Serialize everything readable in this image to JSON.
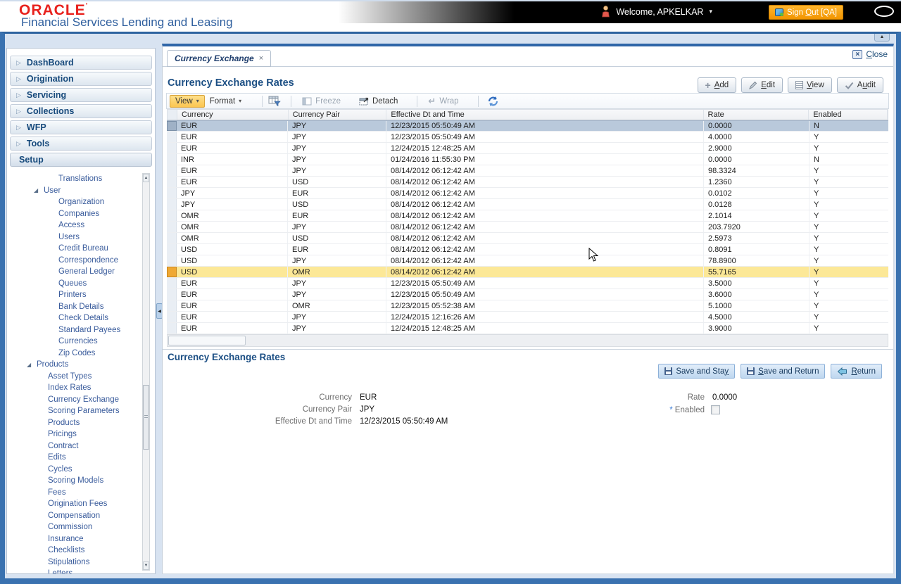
{
  "icons": {
    "expand": "▷",
    "tree_open": "◢",
    "dropdown": "▾",
    "up": "▲",
    "down": "▼",
    "left": "◀",
    "close_x": "×",
    "wrap": "↵",
    "plus": "+"
  },
  "header": {
    "logo": "ORACLE",
    "logo_mark": "’",
    "tagline": "Financial Services Lending and Leasing",
    "welcome": "Welcome, APKELKAR",
    "sign_out": {
      "pre": "Sign ",
      "u": "O",
      "post": "ut [QA]"
    }
  },
  "nav": {
    "items": [
      {
        "label": "DashBoard",
        "arrow": true
      },
      {
        "label": "Origination",
        "arrow": true
      },
      {
        "label": "Servicing",
        "arrow": true
      },
      {
        "label": "Collections",
        "arrow": true
      },
      {
        "label": "WFP",
        "arrow": true
      },
      {
        "label": "Tools",
        "arrow": true
      },
      {
        "label": "Setup",
        "arrow": false
      }
    ]
  },
  "tree": {
    "items": [
      {
        "label": "Translations",
        "pad": 73
      },
      {
        "label": "User",
        "pad": 52,
        "parent": true
      },
      {
        "label": "Organization",
        "pad": 73
      },
      {
        "label": "Companies",
        "pad": 73
      },
      {
        "label": "Access",
        "pad": 73
      },
      {
        "label": "Users",
        "pad": 73
      },
      {
        "label": "Credit Bureau",
        "pad": 73
      },
      {
        "label": "Correspondence",
        "pad": 73
      },
      {
        "label": "General Ledger",
        "pad": 73
      },
      {
        "label": "Queues",
        "pad": 73
      },
      {
        "label": "Printers",
        "pad": 73
      },
      {
        "label": "Bank Details",
        "pad": 73
      },
      {
        "label": "Check Details",
        "pad": 73
      },
      {
        "label": "Standard Payees",
        "pad": 73
      },
      {
        "label": "Currencies",
        "pad": 73
      },
      {
        "label": "Zip Codes",
        "pad": 73
      },
      {
        "label": "Products",
        "pad": 42,
        "parent": true
      },
      {
        "label": "Asset Types",
        "pad": 58
      },
      {
        "label": "Index Rates",
        "pad": 58
      },
      {
        "label": "Currency Exchange",
        "pad": 58
      },
      {
        "label": "Scoring Parameters",
        "pad": 58
      },
      {
        "label": "Products",
        "pad": 58
      },
      {
        "label": "Pricings",
        "pad": 58
      },
      {
        "label": "Contract",
        "pad": 58
      },
      {
        "label": "Edits",
        "pad": 58
      },
      {
        "label": "Cycles",
        "pad": 58
      },
      {
        "label": "Scoring Models",
        "pad": 58
      },
      {
        "label": "Fees",
        "pad": 58
      },
      {
        "label": "Origination Fees",
        "pad": 58
      },
      {
        "label": "Compensation",
        "pad": 58
      },
      {
        "label": "Commission",
        "pad": 58
      },
      {
        "label": "Insurance",
        "pad": 58
      },
      {
        "label": "Checklists",
        "pad": 58
      },
      {
        "label": "Stipulations",
        "pad": 58
      },
      {
        "label": "Letters",
        "pad": 58
      }
    ]
  },
  "window": {
    "tab": "Currency Exchange",
    "close": {
      "pre": "",
      "u": "C",
      "post": "lose"
    }
  },
  "grid": {
    "title": "Currency Exchange Rates",
    "actions": [
      {
        "pre": "",
        "u": "A",
        "post": "dd"
      },
      {
        "pre": "",
        "u": "E",
        "post": "dit"
      },
      {
        "pre": "",
        "u": "V",
        "post": "iew"
      },
      {
        "pre": "A",
        "u": "u",
        "post": "dit"
      }
    ],
    "toolbar": {
      "view": "View",
      "format": "Format",
      "freeze": "Freeze",
      "detach": "Detach",
      "wrap": "Wrap"
    },
    "columns": [
      "Currency",
      "Currency Pair",
      "Effective Dt and Time",
      "Rate",
      "Enabled"
    ],
    "rows": [
      {
        "currency": "EUR",
        "pair": "JPY",
        "dt": "12/23/2015 05:50:49 AM",
        "rate": "0.0000",
        "enabled": "N",
        "state": "selected"
      },
      {
        "currency": "EUR",
        "pair": "JPY",
        "dt": "12/23/2015 05:50:49 AM",
        "rate": "4.0000",
        "enabled": "Y",
        "state": ""
      },
      {
        "currency": "EUR",
        "pair": "JPY",
        "dt": "12/24/2015 12:48:25 AM",
        "rate": "2.9000",
        "enabled": "Y",
        "state": ""
      },
      {
        "currency": "INR",
        "pair": "JPY",
        "dt": "01/24/2016 11:55:30 PM",
        "rate": "0.0000",
        "enabled": "N",
        "state": ""
      },
      {
        "currency": "EUR",
        "pair": "JPY",
        "dt": "08/14/2012 06:12:42 AM",
        "rate": "98.3324",
        "enabled": "Y",
        "state": ""
      },
      {
        "currency": "EUR",
        "pair": "USD",
        "dt": "08/14/2012 06:12:42 AM",
        "rate": "1.2360",
        "enabled": "Y",
        "state": ""
      },
      {
        "currency": "JPY",
        "pair": "EUR",
        "dt": "08/14/2012 06:12:42 AM",
        "rate": "0.0102",
        "enabled": "Y",
        "state": ""
      },
      {
        "currency": "JPY",
        "pair": "USD",
        "dt": "08/14/2012 06:12:42 AM",
        "rate": "0.0128",
        "enabled": "Y",
        "state": ""
      },
      {
        "currency": "OMR",
        "pair": "EUR",
        "dt": "08/14/2012 06:12:42 AM",
        "rate": "2.1014",
        "enabled": "Y",
        "state": ""
      },
      {
        "currency": "OMR",
        "pair": "JPY",
        "dt": "08/14/2012 06:12:42 AM",
        "rate": "203.7920",
        "enabled": "Y",
        "state": ""
      },
      {
        "currency": "OMR",
        "pair": "USD",
        "dt": "08/14/2012 06:12:42 AM",
        "rate": "2.5973",
        "enabled": "Y",
        "state": ""
      },
      {
        "currency": "USD",
        "pair": "EUR",
        "dt": "08/14/2012 06:12:42 AM",
        "rate": "0.8091",
        "enabled": "Y",
        "state": ""
      },
      {
        "currency": "USD",
        "pair": "JPY",
        "dt": "08/14/2012 06:12:42 AM",
        "rate": "78.8900",
        "enabled": "Y",
        "state": ""
      },
      {
        "currency": "USD",
        "pair": "OMR",
        "dt": "08/14/2012 06:12:42 AM",
        "rate": "55.7165",
        "enabled": "Y",
        "state": "hovered"
      },
      {
        "currency": "EUR",
        "pair": "JPY",
        "dt": "12/23/2015 05:50:49 AM",
        "rate": "3.5000",
        "enabled": "Y",
        "state": ""
      },
      {
        "currency": "EUR",
        "pair": "JPY",
        "dt": "12/23/2015 05:50:49 AM",
        "rate": "3.6000",
        "enabled": "Y",
        "state": ""
      },
      {
        "currency": "EUR",
        "pair": "OMR",
        "dt": "12/23/2015 05:52:38 AM",
        "rate": "5.1000",
        "enabled": "Y",
        "state": ""
      },
      {
        "currency": "EUR",
        "pair": "JPY",
        "dt": "12/24/2015 12:16:26 AM",
        "rate": "4.5000",
        "enabled": "Y",
        "state": ""
      },
      {
        "currency": "EUR",
        "pair": "JPY",
        "dt": "12/24/2015 12:48:25 AM",
        "rate": "3.9000",
        "enabled": "Y",
        "state": ""
      }
    ]
  },
  "detail": {
    "title": "Currency Exchange Rates",
    "buttons": [
      {
        "pre": "Save and Sta",
        "u": "y",
        "post": ""
      },
      {
        "pre": "",
        "u": "S",
        "post": "ave and Return"
      },
      {
        "pre": "",
        "u": "R",
        "post": "eturn"
      }
    ],
    "fields": [
      {
        "label": "Currency",
        "value": "EUR"
      },
      {
        "label": "Currency Pair",
        "value": "JPY"
      },
      {
        "label": "Effective Dt and Time",
        "value": "12/23/2015 05:50:49 AM"
      }
    ],
    "rate": {
      "label": "Rate",
      "value": "0.0000"
    },
    "enabled": {
      "star": "*",
      "label": "Enabled"
    }
  }
}
